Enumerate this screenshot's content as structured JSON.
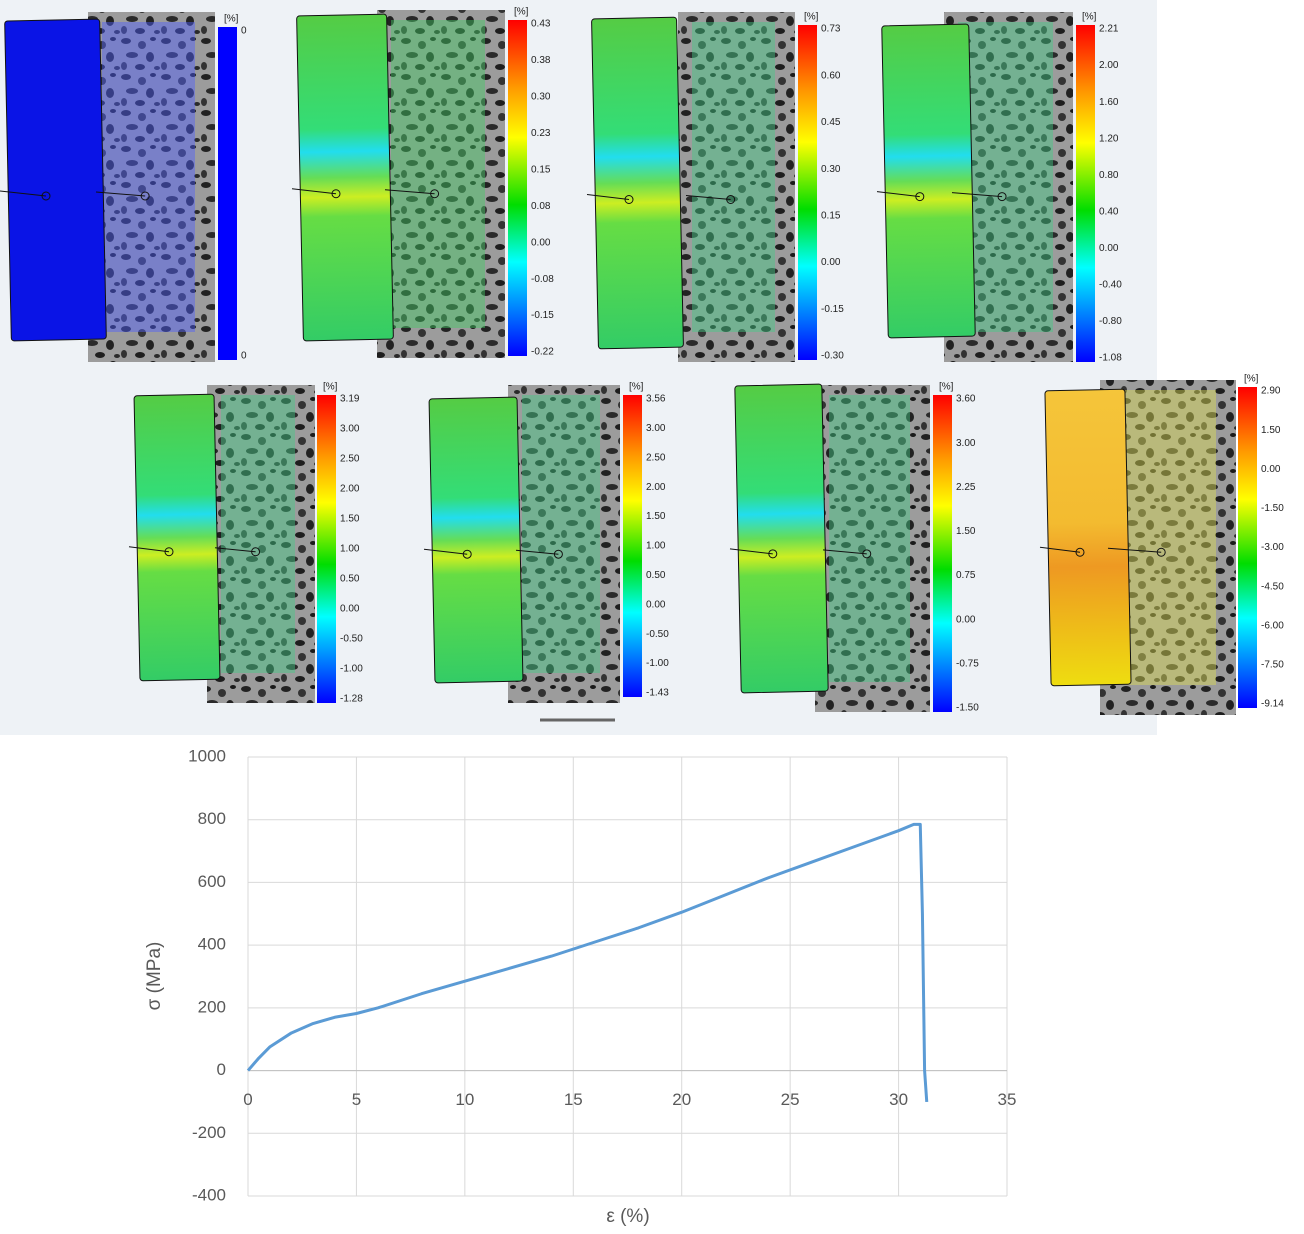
{
  "panels": [
    {
      "unit": "[%]",
      "ticks": [
        "0",
        "0"
      ]
    },
    {
      "unit": "[%]",
      "ticks": [
        "0.43",
        "0.38",
        "0.30",
        "0.23",
        "0.15",
        "0.08",
        "0.00",
        "-0.08",
        "-0.15",
        "-0.22"
      ]
    },
    {
      "unit": "[%]",
      "ticks": [
        "0.73",
        "0.60",
        "0.45",
        "0.30",
        "0.15",
        "0.00",
        "-0.15",
        "-0.30"
      ]
    },
    {
      "unit": "[%]",
      "ticks": [
        "2.21",
        "2.00",
        "1.60",
        "1.20",
        "0.80",
        "0.40",
        "0.00",
        "-0.40",
        "-0.80",
        "-1.08"
      ]
    },
    {
      "unit": "[%]",
      "ticks": [
        "3.19",
        "3.00",
        "2.50",
        "2.00",
        "1.50",
        "1.00",
        "0.50",
        "0.00",
        "-0.50",
        "-1.00",
        "-1.28"
      ]
    },
    {
      "unit": "[%]",
      "ticks": [
        "3.56",
        "3.00",
        "2.50",
        "2.00",
        "1.50",
        "1.00",
        "0.50",
        "0.00",
        "-0.50",
        "-1.00",
        "-1.43"
      ]
    },
    {
      "unit": "[%]",
      "ticks": [
        "3.60",
        "3.00",
        "2.25",
        "1.50",
        "0.75",
        "0.00",
        "-0.75",
        "-1.50"
      ]
    },
    {
      "unit": "[%]",
      "ticks": [
        "2.90",
        "1.50",
        "0.00",
        "-1.50",
        "-3.00",
        "-4.50",
        "-6.00",
        "-7.50",
        "-9.14"
      ]
    }
  ],
  "chart_data": {
    "type": "line",
    "x_label": "ε (%)",
    "y_label": "σ (MPa)",
    "x": [
      0,
      0.5,
      1,
      2,
      3,
      4,
      5,
      6,
      8,
      10,
      12,
      14,
      16,
      18,
      20,
      22,
      24,
      26,
      28,
      30,
      30.7,
      31,
      31.1,
      31.2,
      31.3
    ],
    "series": [
      {
        "color": "#5b9bd5",
        "values": [
          0,
          40,
          75,
          120,
          150,
          170,
          182,
          200,
          245,
          285,
          325,
          365,
          410,
          455,
          505,
          560,
          615,
          665,
          715,
          765,
          785,
          785,
          500,
          0,
          -100
        ]
      }
    ],
    "xlim": [
      0,
      35
    ],
    "xticks": [
      0,
      5,
      10,
      15,
      20,
      25,
      30,
      35
    ],
    "ylim": [
      -400,
      1000
    ],
    "yticks": [
      -400,
      -200,
      0,
      200,
      400,
      600,
      800,
      1000
    ],
    "grid": true
  }
}
